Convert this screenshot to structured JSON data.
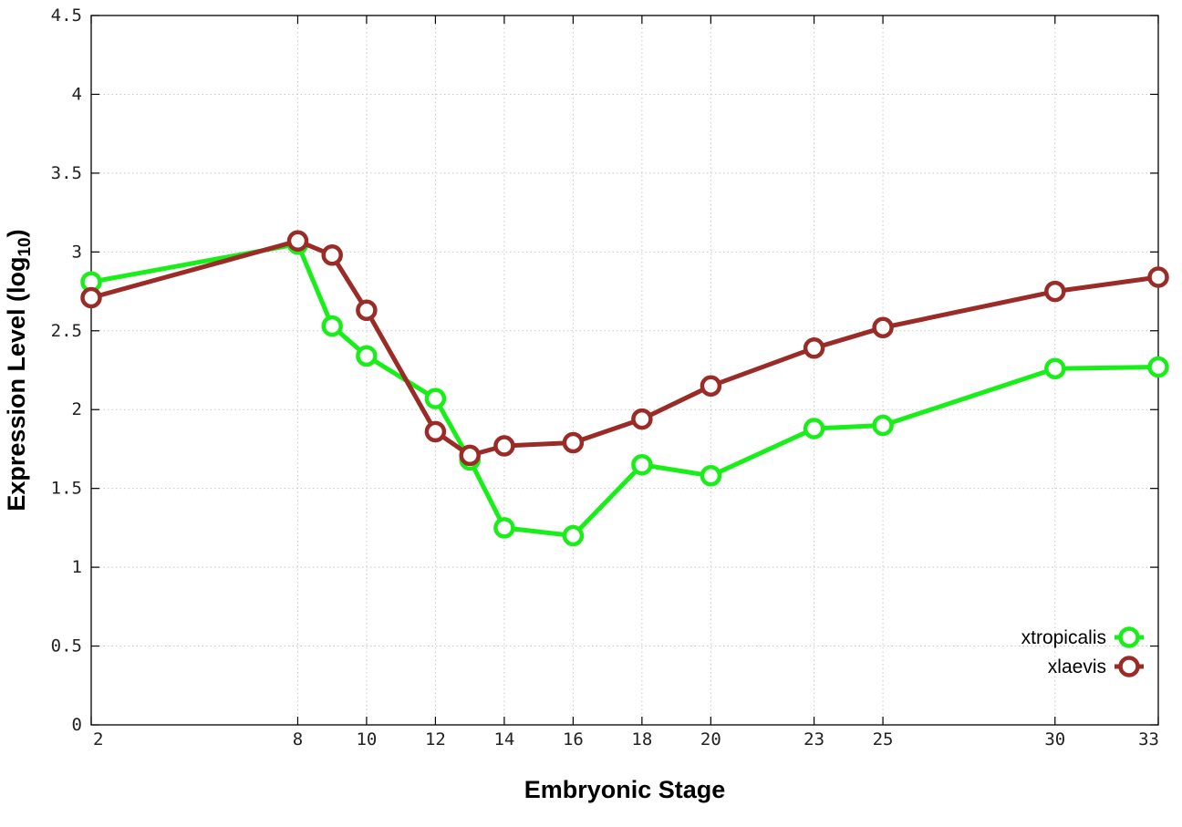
{
  "chart_data": {
    "type": "line",
    "title": "",
    "xlabel": "Embryonic Stage",
    "ylabel_main": "Expression Level (log",
    "ylabel_sub": "10",
    "ylabel_close": ")",
    "x": [
      2,
      8,
      9,
      10,
      12,
      13,
      14,
      16,
      18,
      20,
      23,
      25,
      30,
      33
    ],
    "x_tick_labels": [
      "2",
      "8",
      "10",
      "12",
      "14",
      "16",
      "18",
      "20",
      "23",
      "25",
      "30",
      "33"
    ],
    "y_tick_labels": [
      "0",
      "0.5",
      "1",
      "1.5",
      "2",
      "2.5",
      "3",
      "3.5",
      "4",
      "4.5"
    ],
    "ylim": [
      0,
      4.5
    ],
    "grid": true,
    "legend_position": "bottom-right",
    "series": [
      {
        "name": "xtropicalis",
        "color": "#18ee18",
        "values": [
          2.81,
          3.05,
          2.53,
          2.34,
          2.07,
          1.68,
          1.25,
          1.2,
          1.65,
          1.58,
          1.88,
          1.9,
          2.26,
          2.27
        ]
      },
      {
        "name": "xlaevis",
        "color": "#9b2b27",
        "values": [
          2.71,
          3.07,
          2.98,
          2.63,
          1.86,
          1.71,
          1.77,
          1.79,
          1.94,
          2.15,
          2.39,
          2.52,
          2.75,
          2.84
        ]
      }
    ]
  }
}
